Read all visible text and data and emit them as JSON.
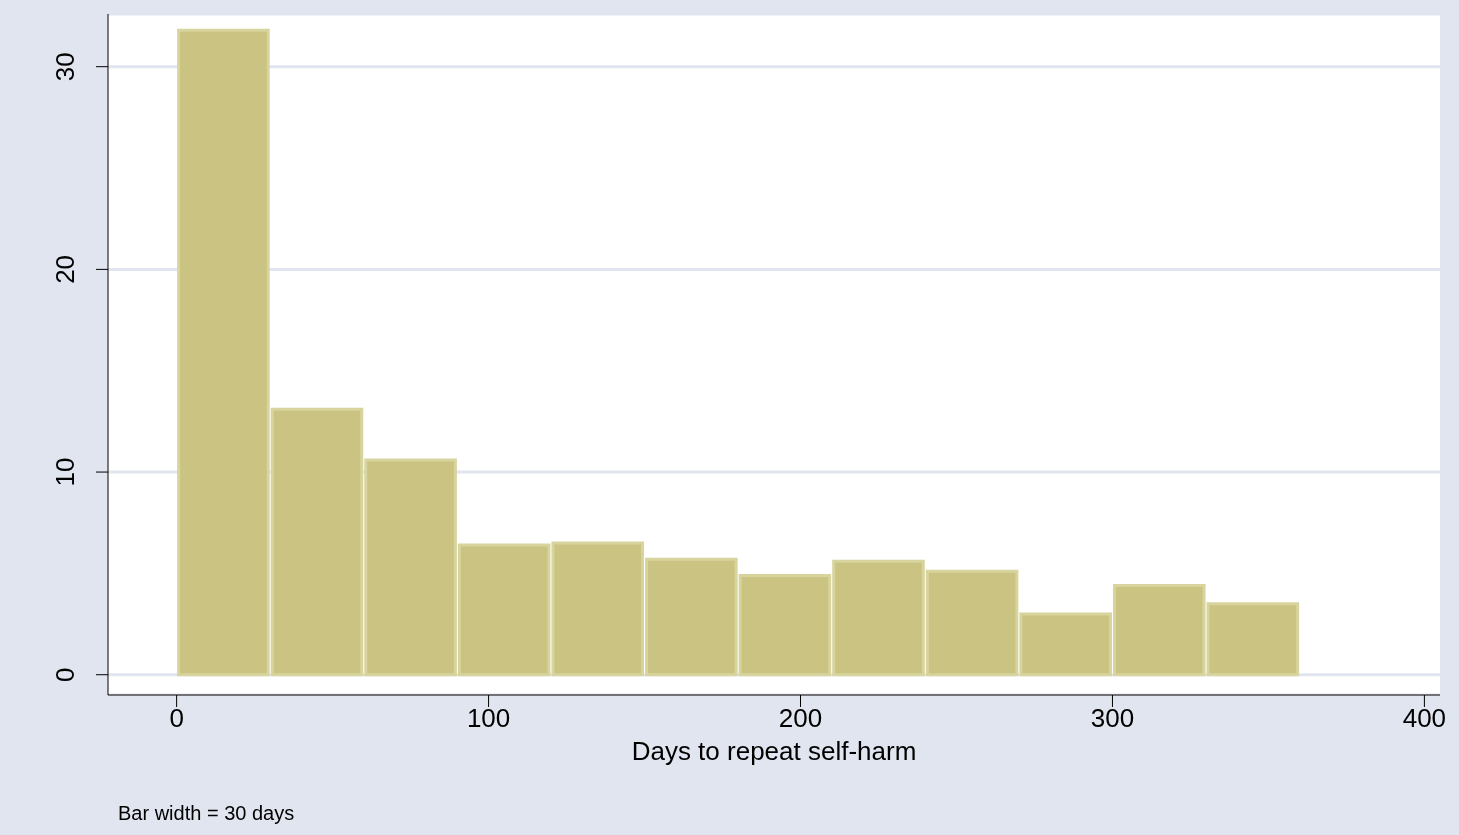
{
  "chart_data": {
    "type": "histogram",
    "xlabel": "Days to repeat self-harm",
    "annotations": [
      "Bar width = 30 days"
    ],
    "bins": [
      0,
      30,
      60,
      90,
      120,
      150,
      180,
      210,
      240,
      270,
      300,
      330,
      360
    ],
    "values": [
      31.8,
      13.1,
      10.6,
      6.4,
      6.5,
      5.7,
      4.9,
      5.6,
      5.1,
      3.0,
      4.4,
      3.5
    ],
    "color": "#cbc382",
    "xlim": [
      -22,
      405
    ],
    "xticks": [
      0,
      100,
      200,
      300,
      400
    ],
    "ylim": [
      -1,
      32.6
    ],
    "yticks": [
      0,
      10,
      20,
      30
    ],
    "grid": "y"
  }
}
